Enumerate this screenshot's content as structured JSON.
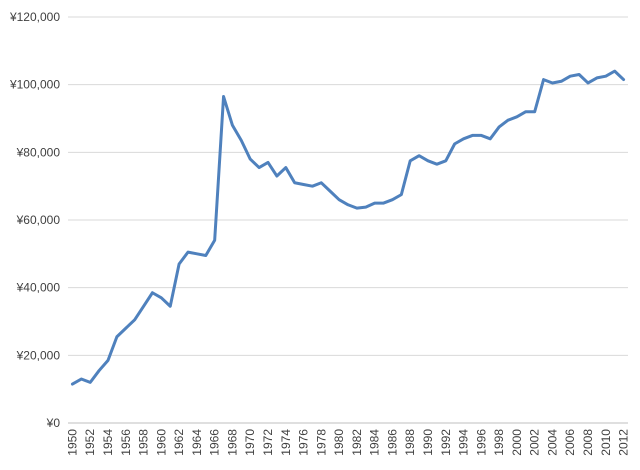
{
  "chart_data": {
    "type": "line",
    "title": "",
    "xlabel": "",
    "ylabel": "",
    "ylim": [
      0,
      120000
    ],
    "grid": true,
    "legend": "none",
    "y_ticks": [
      "¥0",
      "¥20,000",
      "¥40,000",
      "¥60,000",
      "¥80,000",
      "¥100,000",
      "¥120,000"
    ],
    "x_tick_labels": [
      "1950",
      "1952",
      "1954",
      "1956",
      "1958",
      "1960",
      "1962",
      "1964",
      "1966",
      "1968",
      "1970",
      "1972",
      "1974",
      "1976",
      "1978",
      "1980",
      "1982",
      "1984",
      "1986",
      "1988",
      "1990",
      "1992",
      "1994",
      "1996",
      "1998",
      "2000",
      "2002",
      "2004",
      "2006",
      "2008",
      "2010",
      "2012"
    ],
    "x": [
      1950,
      1951,
      1952,
      1953,
      1954,
      1955,
      1956,
      1957,
      1958,
      1959,
      1960,
      1961,
      1962,
      1963,
      1964,
      1965,
      1966,
      1967,
      1968,
      1969,
      1970,
      1971,
      1972,
      1973,
      1974,
      1975,
      1976,
      1977,
      1978,
      1979,
      1980,
      1981,
      1982,
      1983,
      1984,
      1985,
      1986,
      1987,
      1988,
      1989,
      1990,
      1991,
      1992,
      1993,
      1994,
      1995,
      1996,
      1997,
      1998,
      1999,
      2000,
      2001,
      2002,
      2003,
      2004,
      2005,
      2006,
      2007,
      2008,
      2009,
      2010,
      2011,
      2012
    ],
    "series": [
      {
        "color": "#4f81bd",
        "values": [
          11500,
          13000,
          12000,
          15500,
          18500,
          25500,
          28000,
          30500,
          34500,
          38500,
          37000,
          34500,
          47000,
          50500,
          50000,
          49500,
          54000,
          96500,
          88000,
          83500,
          78000,
          75500,
          77000,
          73000,
          75500,
          71000,
          70500,
          70000,
          71000,
          68500,
          66000,
          64500,
          63500,
          63800,
          65000,
          65000,
          66000,
          67500,
          77500,
          79000,
          77500,
          76500,
          77500,
          82500,
          84000,
          85000,
          85000,
          84000,
          87500,
          89500,
          90500,
          92000,
          92000,
          101500,
          100500,
          101000,
          102500,
          103000,
          100500,
          102000,
          102500,
          104000,
          101500
        ]
      }
    ]
  }
}
